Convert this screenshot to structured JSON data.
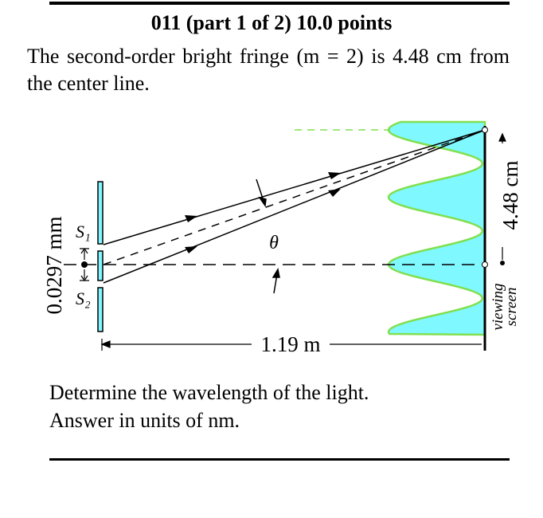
{
  "header": {
    "title": "011 (part 1 of 2) 10.0 points"
  },
  "statement": "The second-order bright fringe (m = 2) is 4.48 cm from the center line.",
  "diagram": {
    "slit_1": "S₁",
    "slit_2": "S₂",
    "angle": "θ",
    "screen_distance": "1.19 m",
    "slit_spacing": "0.0297 mm",
    "fringe_distance": "4.48 cm",
    "screen_label": [
      "viewing",
      "screen"
    ]
  },
  "question": [
    "Determine the wavelength of the light.",
    "Answer in units of  nm."
  ]
}
